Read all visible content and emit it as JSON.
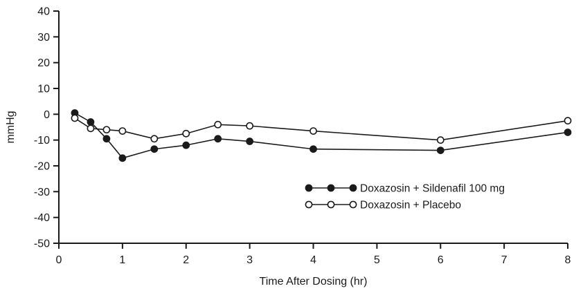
{
  "chart_data": {
    "type": "line",
    "title": "",
    "xlabel": "Time After Dosing (hr)",
    "ylabel": "mmHg",
    "xlim": [
      0,
      8
    ],
    "ylim": [
      -50,
      40
    ],
    "xticks": [
      0,
      1,
      2,
      3,
      4,
      5,
      6,
      7,
      8
    ],
    "yticks": [
      40,
      30,
      20,
      10,
      0,
      -10,
      -20,
      -30,
      -40,
      -50
    ],
    "grid": false,
    "legend_position": "inside-bottom-right",
    "series": [
      {
        "name": "Doxazosin + Sildenafil 100 mg",
        "marker": "filled-circle",
        "x": [
          0.25,
          0.5,
          0.75,
          1,
          1.5,
          2,
          2.5,
          3,
          4,
          6,
          8
        ],
        "y": [
          0.5,
          -3,
          -9.5,
          -17,
          -13.5,
          -12,
          -9.5,
          -10.5,
          -13.5,
          -14,
          -7
        ]
      },
      {
        "name": "Doxazosin + Placebo",
        "marker": "open-circle",
        "x": [
          0.25,
          0.5,
          0.75,
          1,
          1.5,
          2,
          2.5,
          3,
          4,
          6,
          8
        ],
        "y": [
          -1.5,
          -5.5,
          -6,
          -6.5,
          -9.5,
          -7.5,
          -4,
          -4.5,
          -6.5,
          -10,
          -2.5
        ]
      }
    ],
    "colors": {
      "line": "#1a1a1a",
      "background": "#ffffff",
      "open_marker_fill": "#ffffff"
    }
  }
}
